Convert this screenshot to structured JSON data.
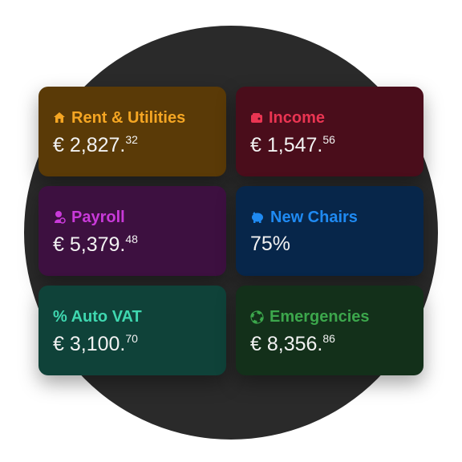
{
  "cards": [
    {
      "title": "Rent & Utilities",
      "amount": "€ 2,827.",
      "cents": "32"
    },
    {
      "title": "Income",
      "amount": "€ 1,547.",
      "cents": "56"
    },
    {
      "title": "Payroll",
      "amount": "€ 5,379.",
      "cents": "48"
    },
    {
      "title": "New Chairs",
      "amount": "75%"
    },
    {
      "title": "% Auto VAT",
      "amount": "€ 3,100.",
      "cents": "70"
    },
    {
      "title": "Emergencies",
      "amount": "€ 8,356.",
      "cents": "86"
    }
  ]
}
